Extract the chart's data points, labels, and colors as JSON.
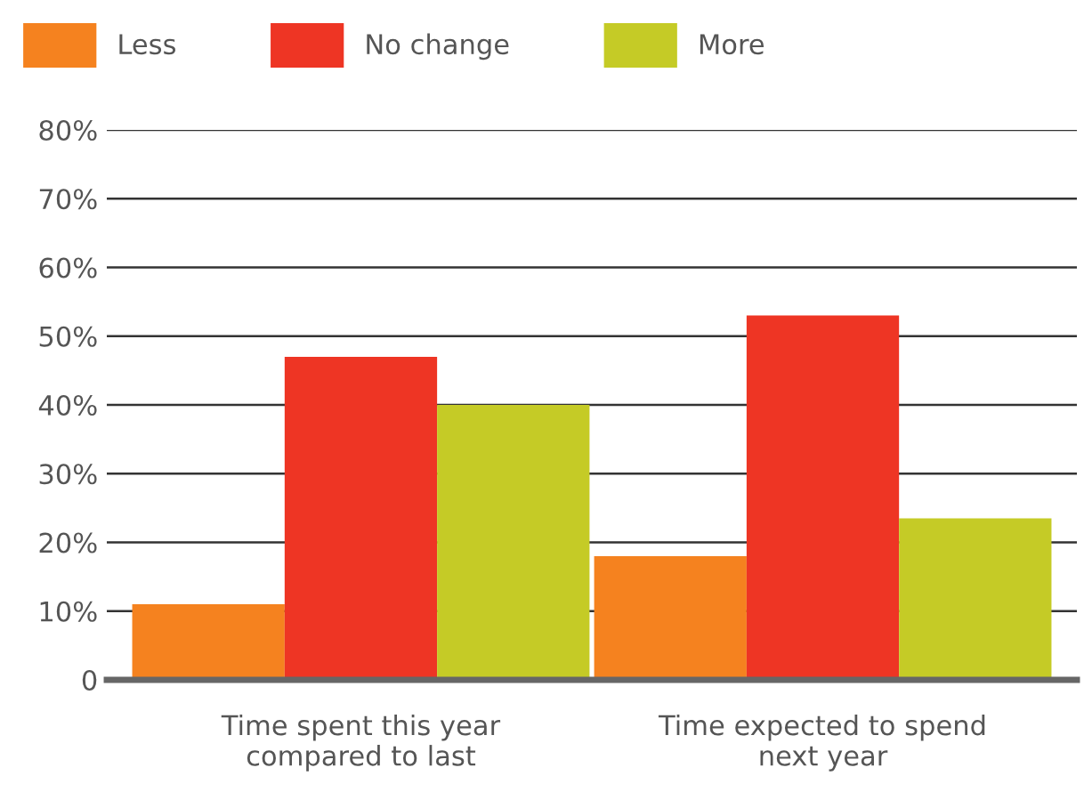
{
  "chart_data": {
    "type": "bar",
    "categories": [
      "Time spent this year\ncompared to last",
      "Time expected to spend\nnext year"
    ],
    "series": [
      {
        "name": "Less",
        "color": "#f5821f",
        "values": [
          11,
          18
        ]
      },
      {
        "name": "No change",
        "color": "#ee3524",
        "values": [
          47,
          53
        ]
      },
      {
        "name": "More",
        "color": "#c5cb26",
        "values": [
          40,
          23.5
        ]
      }
    ],
    "ylim": [
      0,
      80
    ],
    "yticks": [
      {
        "value": 0,
        "label": "0"
      },
      {
        "value": 10,
        "label": "10%"
      },
      {
        "value": 20,
        "label": "20%"
      },
      {
        "value": 30,
        "label": "30%"
      },
      {
        "value": 40,
        "label": "40%"
      },
      {
        "value": 50,
        "label": "50%"
      },
      {
        "value": 60,
        "label": "60%"
      },
      {
        "value": 70,
        "label": "70%"
      },
      {
        "value": 80,
        "label": "80%"
      }
    ],
    "grid": "y",
    "legend": "top left"
  }
}
